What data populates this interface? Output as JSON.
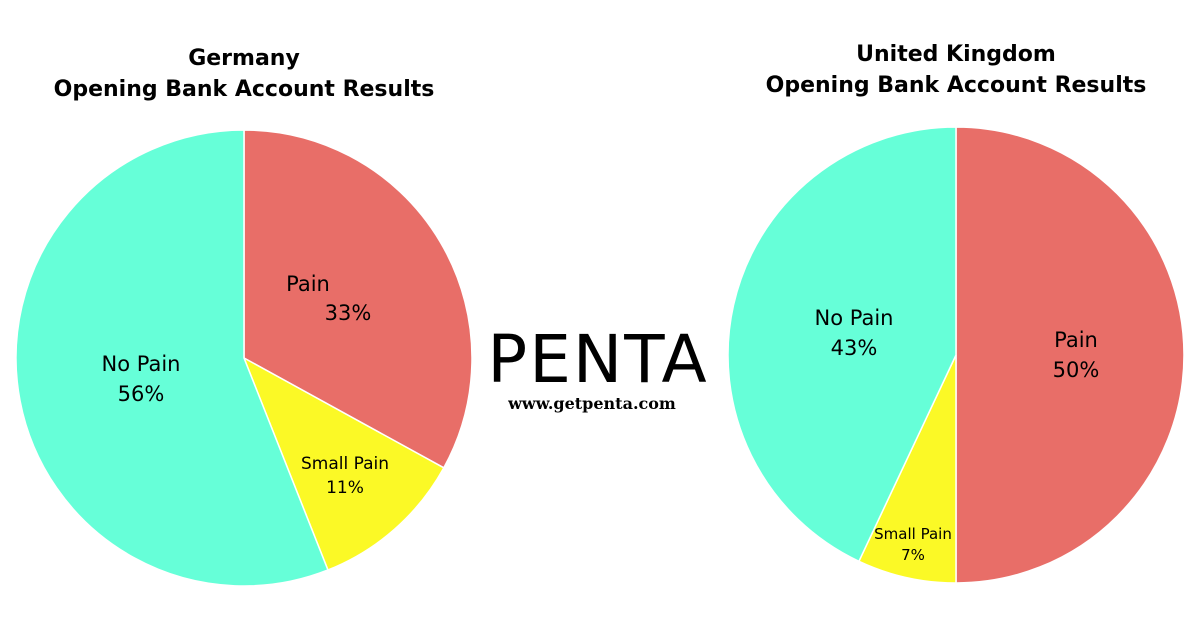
{
  "colors": {
    "pain": "#e86e68",
    "small_pain": "#fbf926",
    "no_pain": "#66ffd8",
    "separator": "#ffffff"
  },
  "brand": {
    "logo": "PENTA",
    "url": "www.getpenta.com"
  },
  "chart_data": [
    {
      "type": "pie",
      "title_line1": "Germany",
      "title_line2": "Opening Bank Account Results",
      "slices": [
        {
          "label": "Pain",
          "value": 33,
          "text": "33%",
          "color": "#e86e68"
        },
        {
          "label": "Small Pain",
          "value": 11,
          "text": "11%",
          "color": "#fbf926"
        },
        {
          "label": "No Pain",
          "value": 56,
          "text": "56%",
          "color": "#66ffd8"
        }
      ]
    },
    {
      "type": "pie",
      "title_line1": "United Kingdom",
      "title_line2": "Opening Bank Account Results",
      "slices": [
        {
          "label": "Pain",
          "value": 50,
          "text": "50%",
          "color": "#e86e68"
        },
        {
          "label": "Small Pain",
          "value": 7,
          "text": "7%",
          "color": "#fbf926"
        },
        {
          "label": "No Pain",
          "value": 43,
          "text": "43%",
          "color": "#66ffd8"
        }
      ]
    }
  ]
}
